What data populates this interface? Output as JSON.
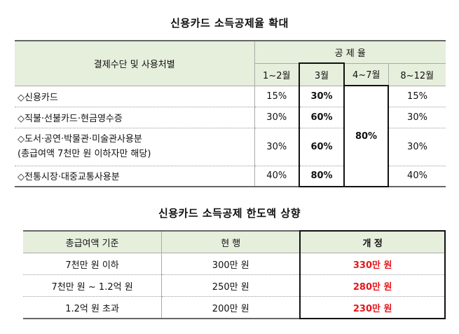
{
  "title1": "신용카드 소득공제율 확대",
  "table1": {
    "header_left": "결제수단 및 사용처별",
    "header_group": "공 제 율",
    "periods": [
      "1~2월",
      "3월",
      "4~7월",
      "8~12월"
    ],
    "rows": [
      {
        "label": "◇신용카드",
        "sub": "",
        "v1": "15%",
        "v2": "30%",
        "v4": "15%"
      },
      {
        "label": "◇직불·선불카드·현금영수증",
        "sub": "",
        "v1": "30%",
        "v2": "60%",
        "v4": "30%"
      },
      {
        "label": "◇도서·공연·박물관·미술관사용분",
        "sub": "(총급여액 7천만 원 이하자만 해당)",
        "v1": "30%",
        "v2": "60%",
        "v4": "30%"
      },
      {
        "label": "◇전통시장·대중교통사용분",
        "sub": "",
        "v1": "40%",
        "v2": "80%",
        "v4": "40%"
      }
    ],
    "merged_apr_jul": "80%"
  },
  "title2": "신용카드 소득공제 한도액 상향",
  "table2": {
    "headers": [
      "총급여액 기준",
      "현 행",
      "개 정"
    ],
    "rows": [
      {
        "basis": "7천만 원 이하",
        "current": "300만 원",
        "revised": "330만 원"
      },
      {
        "basis": "7천만 원 ~ 1.2억 원",
        "current": "250만 원",
        "revised": "280만 원"
      },
      {
        "basis": "1.2억 원 초과",
        "current": "200만 원",
        "revised": "230만 원"
      }
    ]
  },
  "colors": {
    "header_bg": "#e6eedc",
    "highlight_red": "#e8161b"
  }
}
